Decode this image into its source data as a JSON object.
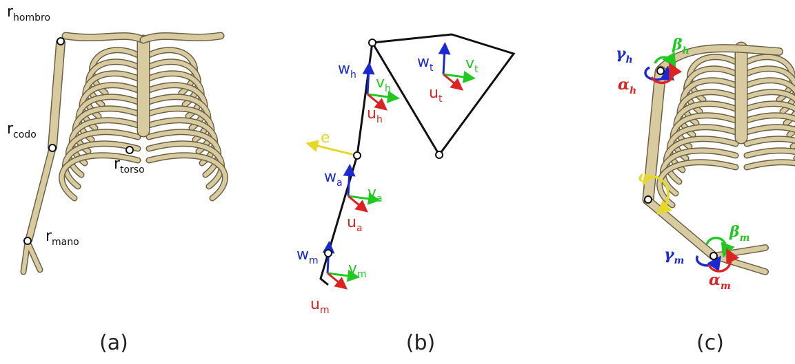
{
  "panel_a": {
    "caption": "(a)",
    "labels": [
      {
        "base": "r",
        "sub": "hombro"
      },
      {
        "base": "r",
        "sub": "codo"
      },
      {
        "base": "r",
        "sub": "torso"
      },
      {
        "base": "r",
        "sub": "mano"
      }
    ]
  },
  "panel_b": {
    "caption": "(b)",
    "labels": [
      {
        "base": "w",
        "sub": "h"
      },
      {
        "base": "v",
        "sub": "h"
      },
      {
        "base": "u",
        "sub": "h"
      },
      {
        "base": "e"
      },
      {
        "base": "w",
        "sub": "t"
      },
      {
        "base": "v",
        "sub": "t"
      },
      {
        "base": "u",
        "sub": "t"
      },
      {
        "base": "w",
        "sub": "a"
      },
      {
        "base": "v",
        "sub": "a"
      },
      {
        "base": "u",
        "sub": "a"
      },
      {
        "base": "w",
        "sub": "m"
      },
      {
        "base": "v",
        "sub": "m"
      },
      {
        "base": "u",
        "sub": "m"
      }
    ]
  },
  "panel_c": {
    "caption": "(c)",
    "labels": [
      {
        "base": "γ",
        "sub": "h"
      },
      {
        "base": "β",
        "sub": "h"
      },
      {
        "base": "α",
        "sub": "h"
      },
      {
        "base": "φ"
      },
      {
        "base": "β",
        "sub": "m"
      },
      {
        "base": "γ",
        "sub": "m"
      },
      {
        "base": "α",
        "sub": "m"
      }
    ]
  }
}
